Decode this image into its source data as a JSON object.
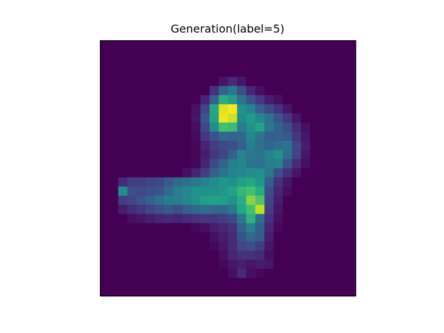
{
  "chart_data": {
    "type": "heatmap",
    "title": "Generation(label=5)",
    "xlabel": "",
    "ylabel": "",
    "colormap": "viridis",
    "vmin": 0,
    "vmax": 1,
    "show_axis_ticks": false,
    "grid": false,
    "rows": 28,
    "cols": 28,
    "values": [
      [
        0,
        0,
        0,
        0,
        0,
        0,
        0,
        0,
        0,
        0,
        0,
        0,
        0,
        0,
        0,
        0,
        0,
        0,
        0,
        0,
        0,
        0,
        0,
        0,
        0,
        0,
        0,
        0
      ],
      [
        0,
        0,
        0,
        0,
        0,
        0,
        0,
        0,
        0,
        0,
        0,
        0,
        0,
        0,
        0,
        0,
        0,
        0,
        0,
        0,
        0,
        0,
        0,
        0,
        0,
        0,
        0,
        0
      ],
      [
        0,
        0,
        0,
        0,
        0,
        0,
        0,
        0,
        0,
        0,
        0,
        0,
        0,
        0,
        0,
        0,
        0,
        0,
        0,
        0,
        0,
        0,
        0,
        0,
        0,
        0,
        0,
        0
      ],
      [
        0,
        0,
        0,
        0,
        0,
        0,
        0,
        0,
        0,
        0,
        0,
        0,
        0,
        0,
        0,
        0,
        0,
        0,
        0,
        0,
        0,
        0,
        0,
        0,
        0,
        0,
        0,
        0
      ],
      [
        0,
        0,
        0,
        0,
        0,
        0,
        0,
        0,
        0,
        0,
        0,
        0,
        0,
        0.06,
        0.12,
        0.06,
        0,
        0,
        0,
        0,
        0,
        0,
        0,
        0,
        0,
        0,
        0,
        0
      ],
      [
        0,
        0,
        0,
        0,
        0,
        0,
        0,
        0,
        0,
        0,
        0,
        0,
        0.14,
        0.32,
        0.4,
        0.24,
        0.1,
        0.04,
        0,
        0,
        0,
        0,
        0,
        0,
        0,
        0,
        0,
        0
      ],
      [
        0,
        0,
        0,
        0,
        0,
        0,
        0,
        0,
        0,
        0,
        0,
        0.1,
        0.3,
        0.62,
        0.55,
        0.38,
        0.26,
        0.16,
        0.08,
        0.04,
        0,
        0,
        0,
        0,
        0,
        0,
        0,
        0
      ],
      [
        0,
        0,
        0,
        0,
        0,
        0,
        0,
        0,
        0,
        0,
        0.05,
        0.2,
        0.6,
        0.95,
        1.0,
        0.5,
        0.44,
        0.3,
        0.22,
        0.14,
        0.06,
        0,
        0,
        0,
        0,
        0,
        0,
        0
      ],
      [
        0,
        0,
        0,
        0,
        0,
        0,
        0,
        0,
        0,
        0,
        0.06,
        0.26,
        0.58,
        0.98,
        0.92,
        0.48,
        0.54,
        0.46,
        0.38,
        0.26,
        0.16,
        0.06,
        0,
        0,
        0,
        0,
        0,
        0
      ],
      [
        0,
        0,
        0,
        0,
        0,
        0,
        0,
        0,
        0,
        0,
        0.04,
        0.22,
        0.48,
        0.7,
        0.68,
        0.42,
        0.5,
        0.58,
        0.4,
        0.32,
        0.24,
        0.12,
        0.04,
        0,
        0,
        0,
        0,
        0
      ],
      [
        0,
        0,
        0,
        0,
        0,
        0,
        0,
        0,
        0,
        0,
        0.03,
        0.16,
        0.26,
        0.34,
        0.32,
        0.34,
        0.46,
        0.38,
        0.3,
        0.3,
        0.28,
        0.16,
        0.06,
        0,
        0,
        0,
        0,
        0
      ],
      [
        0,
        0,
        0,
        0,
        0,
        0,
        0,
        0,
        0,
        0,
        0.02,
        0.1,
        0.18,
        0.22,
        0.24,
        0.3,
        0.42,
        0.36,
        0.32,
        0.36,
        0.38,
        0.2,
        0.08,
        0,
        0,
        0,
        0,
        0
      ],
      [
        0,
        0,
        0,
        0,
        0,
        0,
        0,
        0,
        0,
        0,
        0.02,
        0.08,
        0.16,
        0.2,
        0.3,
        0.44,
        0.4,
        0.38,
        0.44,
        0.5,
        0.36,
        0.2,
        0.06,
        0,
        0,
        0,
        0,
        0
      ],
      [
        0,
        0,
        0,
        0,
        0,
        0,
        0,
        0,
        0,
        0,
        0.02,
        0.1,
        0.22,
        0.32,
        0.42,
        0.46,
        0.38,
        0.36,
        0.42,
        0.44,
        0.26,
        0.12,
        0.04,
        0,
        0,
        0,
        0,
        0
      ],
      [
        0,
        0,
        0,
        0,
        0,
        0,
        0,
        0,
        0,
        0.04,
        0.1,
        0.18,
        0.3,
        0.38,
        0.44,
        0.46,
        0.48,
        0.5,
        0.4,
        0.24,
        0.14,
        0.06,
        0,
        0,
        0,
        0,
        0,
        0
      ],
      [
        0,
        0,
        0.12,
        0.18,
        0.18,
        0.2,
        0.22,
        0.28,
        0.34,
        0.36,
        0.4,
        0.44,
        0.48,
        0.52,
        0.5,
        0.56,
        0.6,
        0.52,
        0.3,
        0.14,
        0.06,
        0,
        0,
        0,
        0,
        0,
        0,
        0
      ],
      [
        0,
        0,
        0.48,
        0.24,
        0.22,
        0.24,
        0.26,
        0.34,
        0.42,
        0.46,
        0.5,
        0.5,
        0.5,
        0.52,
        0.58,
        0.66,
        0.7,
        0.62,
        0.24,
        0.1,
        0.04,
        0,
        0,
        0,
        0,
        0,
        0,
        0
      ],
      [
        0,
        0,
        0.18,
        0.2,
        0.26,
        0.3,
        0.36,
        0.42,
        0.42,
        0.46,
        0.5,
        0.56,
        0.58,
        0.56,
        0.5,
        0.62,
        0.82,
        0.72,
        0.2,
        0.08,
        0,
        0,
        0,
        0,
        0,
        0,
        0,
        0
      ],
      [
        0,
        0,
        0.08,
        0.12,
        0.16,
        0.2,
        0.24,
        0.28,
        0.24,
        0.3,
        0.34,
        0.36,
        0.34,
        0.34,
        0.4,
        0.6,
        0.7,
        0.9,
        0.18,
        0.06,
        0,
        0,
        0,
        0,
        0,
        0,
        0,
        0
      ],
      [
        0,
        0,
        0,
        0.04,
        0.06,
        0.08,
        0.1,
        0.12,
        0.1,
        0.12,
        0.14,
        0.16,
        0.16,
        0.18,
        0.22,
        0.4,
        0.64,
        0.36,
        0.14,
        0.04,
        0,
        0,
        0,
        0,
        0,
        0,
        0,
        0
      ],
      [
        0,
        0,
        0,
        0,
        0,
        0,
        0,
        0,
        0,
        0,
        0.02,
        0.04,
        0.08,
        0.1,
        0.14,
        0.3,
        0.44,
        0.3,
        0.1,
        0.02,
        0,
        0,
        0,
        0,
        0,
        0,
        0,
        0
      ],
      [
        0,
        0,
        0,
        0,
        0,
        0,
        0,
        0,
        0,
        0,
        0,
        0,
        0.04,
        0.08,
        0.12,
        0.26,
        0.34,
        0.28,
        0.08,
        0,
        0,
        0,
        0,
        0,
        0,
        0,
        0,
        0
      ],
      [
        0,
        0,
        0,
        0,
        0,
        0,
        0,
        0,
        0,
        0,
        0,
        0,
        0.02,
        0.06,
        0.12,
        0.2,
        0.24,
        0.18,
        0.06,
        0,
        0,
        0,
        0,
        0,
        0,
        0,
        0,
        0
      ],
      [
        0,
        0,
        0,
        0,
        0,
        0,
        0,
        0,
        0,
        0,
        0,
        0,
        0,
        0.04,
        0.1,
        0.14,
        0.14,
        0.12,
        0.04,
        0,
        0,
        0,
        0,
        0,
        0,
        0,
        0,
        0
      ],
      [
        0,
        0,
        0,
        0,
        0,
        0,
        0,
        0,
        0,
        0,
        0,
        0,
        0,
        0.02,
        0.06,
        0.08,
        0.06,
        0.08,
        0.06,
        0,
        0,
        0,
        0,
        0,
        0,
        0,
        0,
        0
      ],
      [
        0,
        0,
        0,
        0,
        0,
        0,
        0,
        0,
        0,
        0,
        0,
        0,
        0,
        0,
        0.04,
        0.12,
        0.04,
        0.02,
        0,
        0,
        0,
        0,
        0,
        0,
        0,
        0,
        0,
        0
      ],
      [
        0,
        0,
        0,
        0,
        0,
        0,
        0,
        0,
        0,
        0,
        0,
        0,
        0,
        0,
        0,
        0,
        0,
        0,
        0,
        0,
        0,
        0,
        0,
        0,
        0,
        0,
        0,
        0
      ],
      [
        0,
        0,
        0,
        0,
        0,
        0,
        0,
        0,
        0,
        0,
        0,
        0,
        0,
        0,
        0,
        0,
        0,
        0,
        0,
        0,
        0,
        0,
        0,
        0,
        0,
        0,
        0,
        0
      ]
    ]
  }
}
